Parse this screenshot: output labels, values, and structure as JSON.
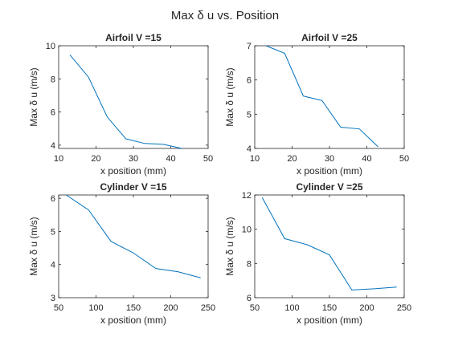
{
  "figure": {
    "title": "Max δ u vs. Position"
  },
  "colors": {
    "line": "#0072BD",
    "axes": "#262626",
    "background": "#ffffff"
  },
  "chart_data": [
    {
      "type": "line",
      "title": "Airfoil V =15",
      "xlabel": "x position (mm)",
      "ylabel": "Max δ u (m/s)",
      "xlim": [
        10,
        50
      ],
      "ylim": [
        3.8,
        10
      ],
      "xticks": [
        10,
        20,
        30,
        40,
        50
      ],
      "yticks": [
        4,
        6,
        8,
        10
      ],
      "x": [
        13,
        18,
        23,
        28,
        33,
        38,
        43
      ],
      "y": [
        9.45,
        8.1,
        5.7,
        4.38,
        4.1,
        4.05,
        3.8
      ]
    },
    {
      "type": "line",
      "title": "Airfoil V =25",
      "xlabel": "x position (mm)",
      "ylabel": "Max δ u (m/s)",
      "xlim": [
        10,
        50
      ],
      "ylim": [
        4,
        7
      ],
      "xticks": [
        10,
        20,
        30,
        40,
        50
      ],
      "yticks": [
        4,
        5,
        6,
        7
      ],
      "x": [
        13,
        18,
        23,
        28,
        33,
        38,
        43
      ],
      "y": [
        7.0,
        6.78,
        5.53,
        5.4,
        4.62,
        4.57,
        4.05
      ]
    },
    {
      "type": "line",
      "title": "Cylinder V =15",
      "xlabel": "x position (mm)",
      "ylabel": "Max δ u (m/s)",
      "xlim": [
        50,
        250
      ],
      "ylim": [
        3,
        6.1
      ],
      "xticks": [
        50,
        100,
        150,
        200,
        250
      ],
      "yticks": [
        3,
        4,
        5,
        6
      ],
      "x": [
        60,
        90,
        120,
        150,
        180,
        210,
        240
      ],
      "y": [
        6.1,
        5.65,
        4.7,
        4.35,
        3.88,
        3.78,
        3.6
      ]
    },
    {
      "type": "line",
      "title": "Cylinder V =25",
      "xlabel": "x position (mm)",
      "ylabel": "Max δ u (m/s)",
      "xlim": [
        50,
        250
      ],
      "ylim": [
        6,
        12
      ],
      "xticks": [
        50,
        100,
        150,
        200,
        250
      ],
      "yticks": [
        6,
        8,
        10,
        12
      ],
      "x": [
        60,
        90,
        120,
        150,
        180,
        210,
        240
      ],
      "y": [
        11.85,
        9.45,
        9.1,
        8.5,
        6.45,
        6.52,
        6.62
      ]
    }
  ]
}
